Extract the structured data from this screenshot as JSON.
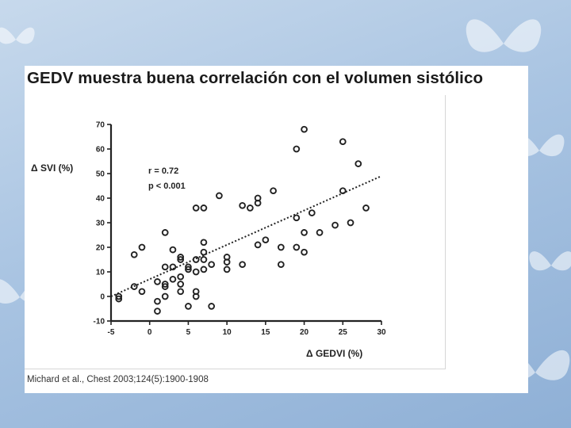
{
  "slide": {
    "title": "GEDV muestra buena correlación con el volumen sistólico",
    "citation": "Michard et al., Chest 2003;124(5):1900-1908"
  },
  "colors": {
    "background": "#a9c4e2",
    "slide": "#ffffff",
    "ink": "#222222"
  },
  "chart_data": {
    "type": "scatter",
    "title": "",
    "xlabel": "Δ GEDVI (%)",
    "ylabel": "Δ SVI (%)",
    "xlim": [
      -5,
      30
    ],
    "ylim": [
      -10,
      70
    ],
    "xticks": [
      -5,
      0,
      5,
      10,
      15,
      20,
      25,
      30
    ],
    "yticks": [
      -10,
      0,
      10,
      20,
      30,
      40,
      50,
      60,
      70
    ],
    "grid": false,
    "legend": "none",
    "annotations": [
      "r = 0.72",
      "p < 0.001"
    ],
    "trendline": {
      "style": "dotted",
      "from": [
        -5,
        0
      ],
      "to": [
        30,
        49
      ]
    },
    "series": [
      {
        "points": [
          [
            -4,
            -1
          ],
          [
            -4,
            0
          ],
          [
            -2,
            17
          ],
          [
            -2,
            4
          ],
          [
            -1,
            20
          ],
          [
            -1,
            2
          ],
          [
            1,
            -6
          ],
          [
            1,
            -2
          ],
          [
            1,
            6
          ],
          [
            2,
            26
          ],
          [
            2,
            12
          ],
          [
            2,
            5
          ],
          [
            2,
            4
          ],
          [
            2,
            0
          ],
          [
            3,
            19
          ],
          [
            3,
            12
          ],
          [
            3,
            7
          ],
          [
            4,
            16
          ],
          [
            4,
            15
          ],
          [
            4,
            8
          ],
          [
            4,
            5
          ],
          [
            4,
            2
          ],
          [
            5,
            12
          ],
          [
            5,
            11
          ],
          [
            5,
            -4
          ],
          [
            6,
            36
          ],
          [
            6,
            15
          ],
          [
            6,
            10
          ],
          [
            6,
            2
          ],
          [
            6,
            0
          ],
          [
            7,
            36
          ],
          [
            7,
            22
          ],
          [
            7,
            18
          ],
          [
            7,
            15
          ],
          [
            7,
            11
          ],
          [
            8,
            13
          ],
          [
            8,
            -4
          ],
          [
            9,
            41
          ],
          [
            10,
            16
          ],
          [
            10,
            14
          ],
          [
            10,
            11
          ],
          [
            12,
            37
          ],
          [
            12,
            13
          ],
          [
            13,
            36
          ],
          [
            14,
            40
          ],
          [
            14,
            38
          ],
          [
            14,
            21
          ],
          [
            15,
            23
          ],
          [
            16,
            43
          ],
          [
            17,
            20
          ],
          [
            17,
            13
          ],
          [
            19,
            60
          ],
          [
            19,
            32
          ],
          [
            19,
            20
          ],
          [
            20,
            68
          ],
          [
            20,
            26
          ],
          [
            20,
            18
          ],
          [
            21,
            34
          ],
          [
            22,
            26
          ],
          [
            24,
            29
          ],
          [
            25,
            63
          ],
          [
            25,
            43
          ],
          [
            26,
            30
          ],
          [
            27,
            54
          ],
          [
            28,
            36
          ]
        ]
      }
    ]
  }
}
